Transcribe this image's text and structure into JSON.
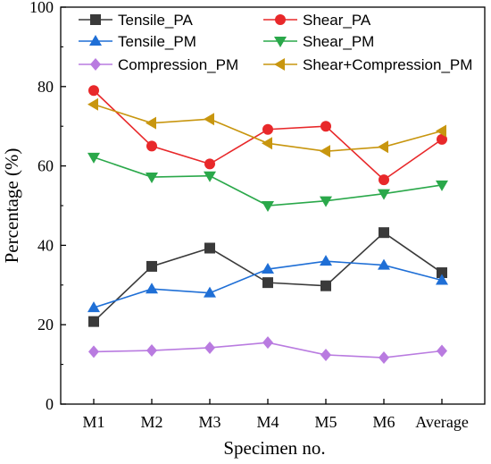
{
  "chart_data": {
    "type": "line",
    "xlabel": "Specimen no.",
    "ylabel": "Percentage (%)",
    "ylim": [
      0,
      100
    ],
    "yticks": [
      0,
      20,
      40,
      60,
      80,
      100
    ],
    "grid": false,
    "legend_position": "top",
    "categories": [
      "M1",
      "M2",
      "M3",
      "M4",
      "M5",
      "M6",
      "Average"
    ],
    "series": [
      {
        "name": "Tensile_PA",
        "color": "#3a3a3a",
        "marker": "square",
        "values": [
          20.8,
          34.7,
          39.3,
          30.6,
          29.8,
          43.2,
          33.1
        ]
      },
      {
        "name": "Shear_PA",
        "color": "#e8282a",
        "marker": "circle",
        "values": [
          79.0,
          65.0,
          60.5,
          69.2,
          70.0,
          56.5,
          66.7
        ]
      },
      {
        "name": "Tensile_PM",
        "color": "#1f6fd6",
        "marker": "triangle-up",
        "values": [
          24.3,
          29.0,
          28.0,
          34.0,
          36.0,
          35.0,
          31.2
        ]
      },
      {
        "name": "Shear_PM",
        "color": "#2aa84a",
        "marker": "triangle-down",
        "values": [
          62.2,
          57.2,
          57.5,
          50.0,
          51.2,
          53.0,
          55.2
        ]
      },
      {
        "name": "Compression_PM",
        "color": "#b97be0",
        "marker": "diamond",
        "values": [
          13.2,
          13.5,
          14.2,
          15.5,
          12.4,
          11.7,
          13.4
        ]
      },
      {
        "name": "Shear+Compression_PM",
        "color": "#c8960f",
        "marker": "triangle-left",
        "values": [
          75.5,
          70.8,
          71.8,
          65.7,
          63.7,
          64.8,
          68.8
        ]
      }
    ]
  }
}
